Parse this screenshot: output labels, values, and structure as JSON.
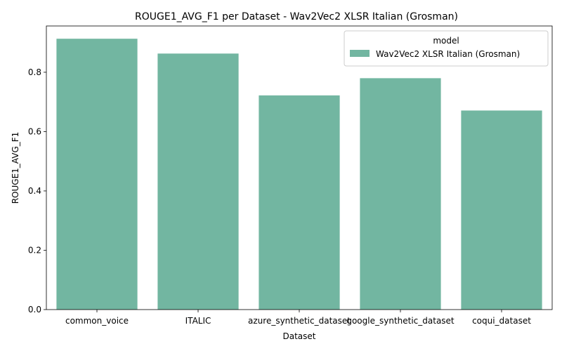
{
  "chart_data": {
    "type": "bar",
    "title": "ROUGE1_AVG_F1 per Dataset - Wav2Vec2 XLSR Italian (Grosman)",
    "xlabel": "Dataset",
    "ylabel": "ROUGE1_AVG_F1",
    "categories": [
      "common_voice",
      "ITALIC",
      "azure_synthetic_dataset",
      "google_synthetic_dataset",
      "coqui_dataset"
    ],
    "series": [
      {
        "name": "Wav2Vec2 XLSR Italian (Grosman)",
        "values": [
          0.913,
          0.863,
          0.722,
          0.78,
          0.671
        ],
        "color": "#72b6a1"
      }
    ],
    "ylim": [
      0,
      0.956
    ],
    "yticks": [
      "0.0",
      "0.2",
      "0.4",
      "0.6",
      "0.8"
    ],
    "grid": false,
    "legend": {
      "title": "model",
      "placement": "top-right"
    }
  }
}
